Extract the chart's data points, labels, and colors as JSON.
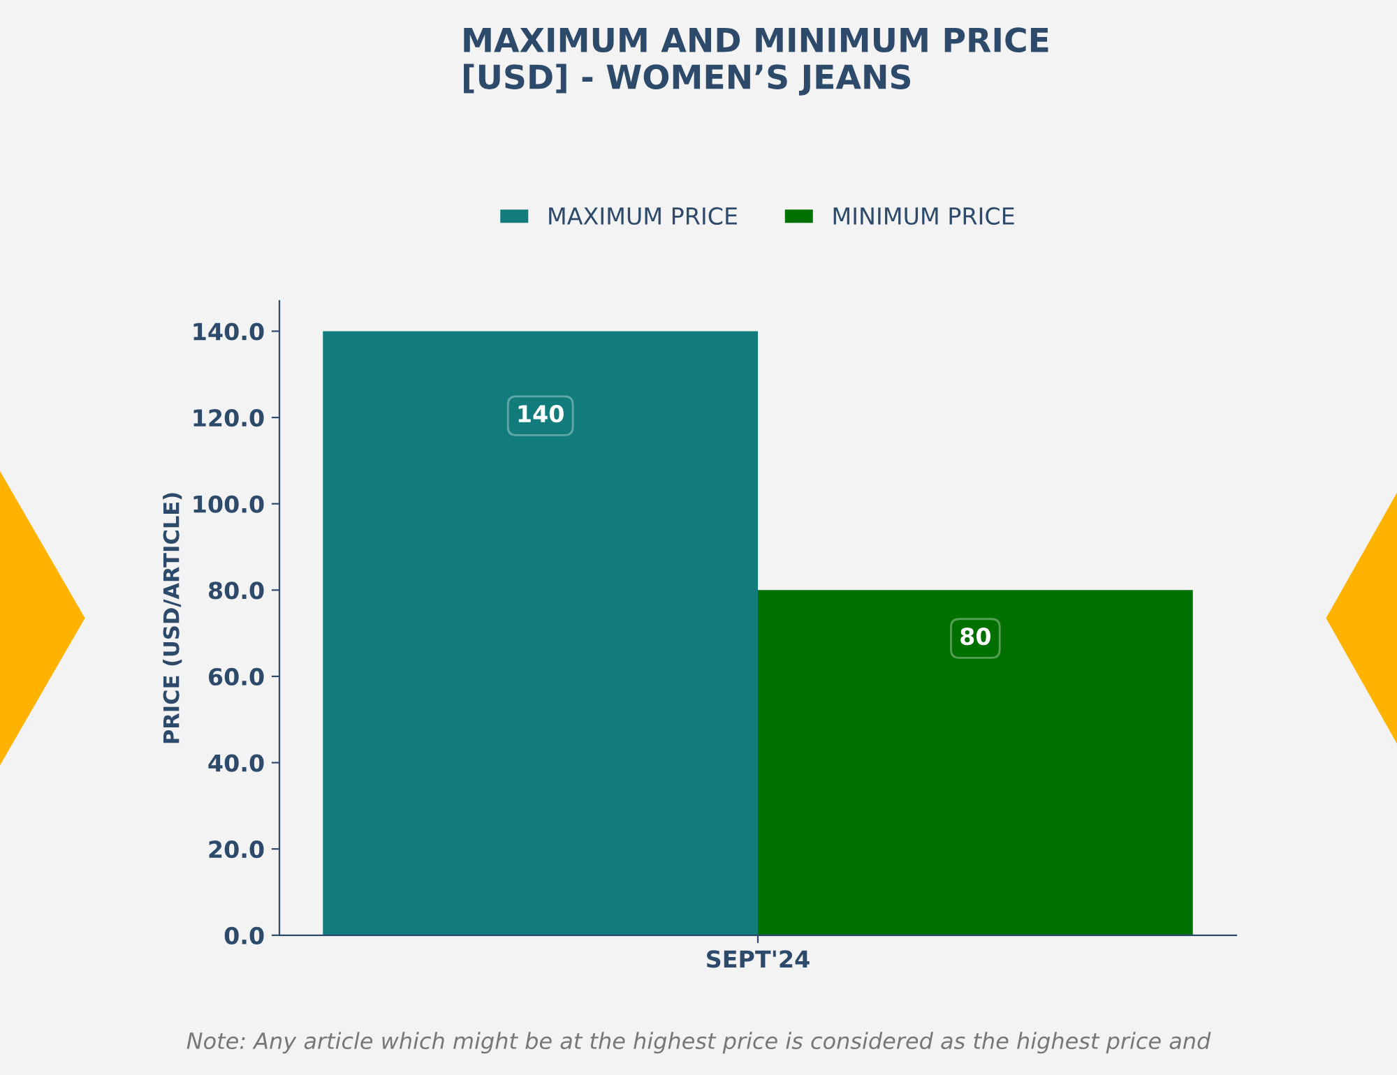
{
  "chart_data": {
    "type": "bar",
    "title": "MAXIMUM AND MINIMUM PRICE\n[USD] - WOMEN’S JEANS",
    "categories": [
      "SEPT'24"
    ],
    "series": [
      {
        "name": "MAXIMUM PRICE",
        "color": "#127c7c",
        "values": [
          140
        ]
      },
      {
        "name": "MINIMUM PRICE",
        "color": "#007000",
        "values": [
          80
        ]
      }
    ],
    "ylabel": "PRICE (USD/ARTICLE)",
    "ylim": [
      0,
      147
    ],
    "yticks": [
      {
        "value": 0,
        "label": "0.0"
      },
      {
        "value": 20,
        "label": "20.0"
      },
      {
        "value": 40,
        "label": "40.0"
      },
      {
        "value": 60,
        "label": "60.0"
      },
      {
        "value": 80,
        "label": "80.0"
      },
      {
        "value": 100,
        "label": "100.0"
      },
      {
        "value": 120,
        "label": "120.0"
      },
      {
        "value": 140,
        "label": "140.0"
      }
    ],
    "data_labels": true,
    "legend": "top",
    "grid": false,
    "annotations": [
      "Note: Any article which might be at the highest price is considered as the highest price and"
    ]
  }
}
